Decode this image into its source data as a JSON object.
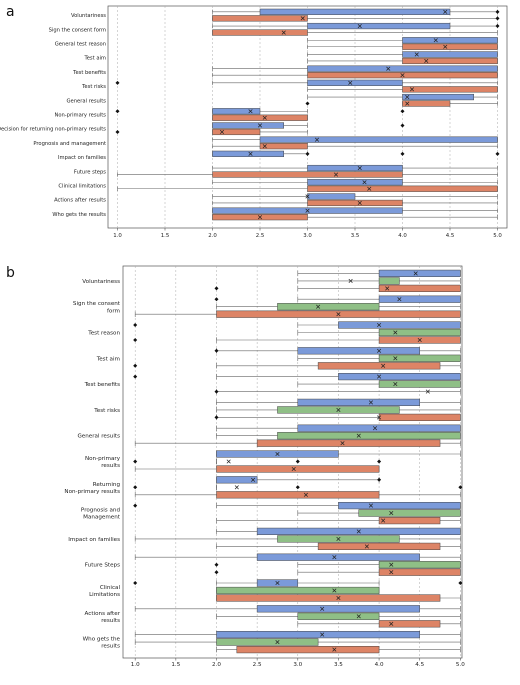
{
  "chart_data": [
    {
      "type": "box",
      "panel_label": "a",
      "xlim": [
        0.9,
        5.1
      ],
      "xticks": [
        "1.0",
        "1.5",
        "2.0",
        "2.5",
        "3.0",
        "3.5",
        "4.0",
        "4.5",
        "5.0"
      ],
      "grid": "vertical dashed",
      "series_colors": [
        "#7b9ad9",
        "#dd8466"
      ],
      "rows": [
        {
          "label": "Voluntariness",
          "boxes": [
            {
              "q1": 2.5,
              "q3": 4.5,
              "mean": 4.45,
              "wmin": 2.0,
              "wmax": 5.0,
              "out": [
                5.0
              ]
            },
            {
              "q1": 2.0,
              "q3": 3.0,
              "mean": 2.95,
              "wmin": 2.0,
              "wmax": 5.0,
              "out": [
                5.0
              ]
            }
          ]
        },
        {
          "label": "Sign the consent form",
          "boxes": [
            {
              "q1": 3.0,
              "q3": 4.5,
              "mean": 3.55,
              "wmin": 2.0,
              "wmax": 5.0,
              "out": [
                5.0
              ]
            },
            {
              "q1": 2.0,
              "q3": 3.0,
              "mean": 2.75,
              "wmin": 2.0,
              "wmax": 5.0,
              "out": []
            }
          ]
        },
        {
          "label": "General test reason",
          "boxes": [
            {
              "q1": 4.0,
              "q3": 5.0,
              "mean": 4.35,
              "wmin": 3.0,
              "wmax": 5.0,
              "out": []
            },
            {
              "q1": 4.0,
              "q3": 5.0,
              "mean": 4.45,
              "wmin": 3.0,
              "wmax": 5.0,
              "out": []
            }
          ]
        },
        {
          "label": "Test aim",
          "boxes": [
            {
              "q1": 4.0,
              "q3": 5.0,
              "mean": 4.15,
              "wmin": 3.0,
              "wmax": 5.0,
              "out": []
            },
            {
              "q1": 4.0,
              "q3": 5.0,
              "mean": 4.25,
              "wmin": 3.0,
              "wmax": 5.0,
              "out": []
            }
          ]
        },
        {
          "label": "Test benefits",
          "boxes": [
            {
              "q1": 3.0,
              "q3": 5.0,
              "mean": 3.85,
              "wmin": 2.0,
              "wmax": 5.0,
              "out": []
            },
            {
              "q1": 3.0,
              "q3": 5.0,
              "mean": 4.0,
              "wmin": 2.0,
              "wmax": 5.0,
              "out": []
            }
          ]
        },
        {
          "label": "Test risks",
          "boxes": [
            {
              "q1": 3.0,
              "q3": 4.0,
              "mean": 3.45,
              "wmin": 2.0,
              "wmax": 5.0,
              "out": [
                1.0
              ]
            },
            {
              "q1": 4.0,
              "q3": 5.0,
              "mean": 4.1,
              "wmin": 3.0,
              "wmax": 5.0,
              "out": []
            }
          ]
        },
        {
          "label": "General results",
          "boxes": [
            {
              "q1": 4.0,
              "q3": 4.75,
              "mean": 4.05,
              "wmin": 3.0,
              "wmax": 5.0,
              "out": []
            },
            {
              "q1": 4.0,
              "q3": 4.5,
              "mean": 4.05,
              "wmin": 4.0,
              "wmax": 5.0,
              "out": [
                3.0
              ]
            }
          ]
        },
        {
          "label": "Non-primary results",
          "boxes": [
            {
              "q1": 2.0,
              "q3": 2.5,
              "mean": 2.4,
              "wmin": 2.0,
              "wmax": 3.0,
              "out": [
                1.0,
                4.0
              ]
            },
            {
              "q1": 2.0,
              "q3": 3.0,
              "mean": 2.55,
              "wmin": 2.0,
              "wmax": 3.0,
              "out": []
            }
          ]
        },
        {
          "label": "Decision for returning non-primary results",
          "boxes": [
            {
              "q1": 2.0,
              "q3": 2.75,
              "mean": 2.5,
              "wmin": 2.0,
              "wmax": 3.0,
              "out": [
                4.0
              ]
            },
            {
              "q1": 2.0,
              "q3": 2.5,
              "mean": 2.1,
              "wmin": 2.0,
              "wmax": 3.0,
              "out": [
                1.0
              ]
            }
          ]
        },
        {
          "label": "Prognosis and management",
          "boxes": [
            {
              "q1": 2.5,
              "q3": 5.0,
              "mean": 3.1,
              "wmin": 2.0,
              "wmax": 5.0,
              "out": []
            },
            {
              "q1": 2.5,
              "q3": 3.0,
              "mean": 2.55,
              "wmin": 2.0,
              "wmax": 5.0,
              "out": []
            }
          ]
        },
        {
          "label": "Impact on families",
          "boxes": [
            {
              "q1": 2.0,
              "q3": 2.75,
              "mean": 2.4,
              "wmin": 2.0,
              "wmax": 3.0,
              "out": [
                3.0,
                4.0,
                5.0
              ]
            },
            {
              "q1": null,
              "q3": null,
              "mean": null,
              "wmin": null,
              "wmax": null,
              "out": []
            }
          ]
        },
        {
          "label": "Future steps",
          "boxes": [
            {
              "q1": 3.0,
              "q3": 4.0,
              "mean": 3.55,
              "wmin": 2.0,
              "wmax": 5.0,
              "out": []
            },
            {
              "q1": 2.0,
              "q3": 4.0,
              "mean": 3.3,
              "wmin": 1.0,
              "wmax": 5.0,
              "out": []
            }
          ]
        },
        {
          "label": "Clinical limitations",
          "boxes": [
            {
              "q1": 3.0,
              "q3": 4.0,
              "mean": 3.6,
              "wmin": 2.0,
              "wmax": 5.0,
              "out": []
            },
            {
              "q1": 3.0,
              "q3": 5.0,
              "mean": 3.65,
              "wmin": 1.0,
              "wmax": 5.0,
              "out": []
            }
          ]
        },
        {
          "label": "Actions after results",
          "boxes": [
            {
              "q1": 3.0,
              "q3": 3.5,
              "mean": 3.0,
              "wmin": 2.0,
              "wmax": 5.0,
              "out": []
            },
            {
              "q1": 3.0,
              "q3": 4.0,
              "mean": 3.55,
              "wmin": 2.0,
              "wmax": 5.0,
              "out": []
            }
          ]
        },
        {
          "label": "Who gets the results",
          "boxes": [
            {
              "q1": 2.0,
              "q3": 4.0,
              "mean": 3.0,
              "wmin": 2.0,
              "wmax": 5.0,
              "out": []
            },
            {
              "q1": 2.0,
              "q3": 3.0,
              "mean": 2.5,
              "wmin": 2.0,
              "wmax": 5.0,
              "out": []
            }
          ]
        }
      ]
    },
    {
      "type": "box",
      "panel_label": "b",
      "xlim": [
        0.85,
        5.02
      ],
      "xticks": [
        "1.0",
        "1.5",
        "2.0",
        "2.5",
        "3.0",
        "3.5",
        "4.0",
        "4.5",
        "5.0"
      ],
      "grid": "vertical dashed",
      "series_colors": [
        "#7b9ad9",
        "#8fbf86",
        "#dd8466"
      ],
      "rows": [
        {
          "label": "Voluntariness",
          "boxes": [
            {
              "q1": 4.0,
              "q3": 5.0,
              "mean": 4.45,
              "wmin": 3.0,
              "wmax": 5.0,
              "out": []
            },
            {
              "q1": 4.0,
              "q3": 4.25,
              "mean": 3.65,
              "wmin": 3.0,
              "wmax": 5.0,
              "out": []
            },
            {
              "q1": 4.0,
              "q3": 5.0,
              "mean": 4.1,
              "wmin": 3.0,
              "wmax": 5.0,
              "out": [
                2.0
              ]
            }
          ]
        },
        {
          "label": "Sign the consent form",
          "boxes": [
            {
              "q1": 4.0,
              "q3": 5.0,
              "mean": 4.25,
              "wmin": 3.0,
              "wmax": 5.0,
              "out": [
                2.0
              ]
            },
            {
              "q1": 2.75,
              "q3": 4.0,
              "mean": 3.25,
              "wmin": 2.0,
              "wmax": 5.0,
              "out": []
            },
            {
              "q1": 2.0,
              "q3": 5.0,
              "mean": 3.5,
              "wmin": 1.0,
              "wmax": 5.0,
              "out": []
            }
          ]
        },
        {
          "label": "Test reason",
          "boxes": [
            {
              "q1": 3.5,
              "q3": 5.0,
              "mean": 4.0,
              "wmin": 3.0,
              "wmax": 5.0,
              "out": [
                1.0
              ]
            },
            {
              "q1": 4.0,
              "q3": 5.0,
              "mean": 4.2,
              "wmin": 3.0,
              "wmax": 5.0,
              "out": []
            },
            {
              "q1": 4.0,
              "q3": 5.0,
              "mean": 4.5,
              "wmin": 2.0,
              "wmax": 5.0,
              "out": [
                1.0
              ]
            }
          ]
        },
        {
          "label": "Test aim",
          "boxes": [
            {
              "q1": 3.0,
              "q3": 4.5,
              "mean": 4.0,
              "wmin": 2.0,
              "wmax": 5.0,
              "out": [
                2.0
              ]
            },
            {
              "q1": 4.0,
              "q3": 5.0,
              "mean": 4.2,
              "wmin": 3.0,
              "wmax": 5.0,
              "out": []
            },
            {
              "q1": 3.25,
              "q3": 4.75,
              "mean": 4.05,
              "wmin": 2.0,
              "wmax": 5.0,
              "out": [
                1.0
              ]
            }
          ]
        },
        {
          "label": "Test benefits",
          "boxes": [
            {
              "q1": 3.5,
              "q3": 5.0,
              "mean": 4.0,
              "wmin": 2.0,
              "wmax": 5.0,
              "out": [
                1.0
              ]
            },
            {
              "q1": 4.0,
              "q3": 5.0,
              "mean": 4.2,
              "wmin": 3.0,
              "wmax": 5.0,
              "out": []
            },
            {
              "q1": null,
              "q3": null,
              "mean": 4.6,
              "wmin": 2.0,
              "wmax": 5.0,
              "out": [
                2.0
              ]
            }
          ]
        },
        {
          "label": "Test risks",
          "boxes": [
            {
              "q1": 3.0,
              "q3": 4.5,
              "mean": 3.9,
              "wmin": 2.0,
              "wmax": 5.0,
              "out": []
            },
            {
              "q1": 2.75,
              "q3": 4.25,
              "mean": 3.5,
              "wmin": 2.0,
              "wmax": 5.0,
              "out": []
            },
            {
              "q1": 4.0,
              "q3": 5.0,
              "mean": 4.0,
              "wmin": 2.0,
              "wmax": 5.0,
              "out": [
                2.0
              ]
            }
          ]
        },
        {
          "label": "General results",
          "boxes": [
            {
              "q1": 3.0,
              "q3": 5.0,
              "mean": 3.95,
              "wmin": 2.0,
              "wmax": 5.0,
              "out": []
            },
            {
              "q1": 2.75,
              "q3": 5.0,
              "mean": 3.75,
              "wmin": 2.0,
              "wmax": 5.0,
              "out": []
            },
            {
              "q1": 2.5,
              "q3": 4.75,
              "mean": 3.55,
              "wmin": 1.0,
              "wmax": 5.0,
              "out": []
            }
          ]
        },
        {
          "label": "Non-primary results",
          "boxes": [
            {
              "q1": 2.0,
              "q3": 3.5,
              "mean": 2.75,
              "wmin": 2.0,
              "wmax": 5.0,
              "out": []
            },
            {
              "q1": null,
              "q3": null,
              "mean": 2.15,
              "wmin": 2.0,
              "wmax": 2.0,
              "out": [
                1.0,
                3.0,
                4.0
              ]
            },
            {
              "q1": 2.0,
              "q3": 4.0,
              "mean": 2.95,
              "wmin": 1.0,
              "wmax": 4.0,
              "out": []
            }
          ]
        },
        {
          "label": "Returning Non-primary results",
          "boxes": [
            {
              "q1": 2.0,
              "q3": 2.5,
              "mean": 2.45,
              "wmin": 2.0,
              "wmax": 4.0,
              "out": [
                4.0
              ]
            },
            {
              "q1": null,
              "q3": null,
              "mean": 2.25,
              "wmin": 2.0,
              "wmax": 2.0,
              "out": [
                1.0,
                3.0,
                5.0
              ]
            },
            {
              "q1": 2.0,
              "q3": 4.0,
              "mean": 3.1,
              "wmin": 1.0,
              "wmax": 5.0,
              "out": []
            }
          ]
        },
        {
          "label": "Prognosis and Management",
          "boxes": [
            {
              "q1": 3.5,
              "q3": 5.0,
              "mean": 3.9,
              "wmin": 2.0,
              "wmax": 5.0,
              "out": [
                1.0
              ]
            },
            {
              "q1": 3.75,
              "q3": 5.0,
              "mean": 4.15,
              "wmin": 3.0,
              "wmax": 5.0,
              "out": []
            },
            {
              "q1": 4.0,
              "q3": 4.75,
              "mean": 4.05,
              "wmin": 2.0,
              "wmax": 5.0,
              "out": []
            }
          ]
        },
        {
          "label": "Impact on families",
          "boxes": [
            {
              "q1": 2.5,
              "q3": 5.0,
              "mean": 3.75,
              "wmin": 2.0,
              "wmax": 5.0,
              "out": []
            },
            {
              "q1": 2.75,
              "q3": 4.25,
              "mean": 3.5,
              "wmin": 1.0,
              "wmax": 5.0,
              "out": []
            },
            {
              "q1": 3.25,
              "q3": 4.75,
              "mean": 3.85,
              "wmin": 2.0,
              "wmax": 5.0,
              "out": []
            }
          ]
        },
        {
          "label": "Future Steps",
          "boxes": [
            {
              "q1": 2.5,
              "q3": 4.5,
              "mean": 3.45,
              "wmin": 1.0,
              "wmax": 5.0,
              "out": []
            },
            {
              "q1": 4.0,
              "q3": 5.0,
              "mean": 4.15,
              "wmin": 3.0,
              "wmax": 5.0,
              "out": [
                2.0
              ]
            },
            {
              "q1": 4.0,
              "q3": 5.0,
              "mean": 4.15,
              "wmin": 3.0,
              "wmax": 5.0,
              "out": [
                2.0
              ]
            }
          ]
        },
        {
          "label": "Clinical Limitations",
          "boxes": [
            {
              "q1": 2.5,
              "q3": 3.0,
              "mean": 2.75,
              "wmin": 2.0,
              "wmax": 4.0,
              "out": [
                1.0,
                5.0
              ]
            },
            {
              "q1": 2.0,
              "q3": 4.0,
              "mean": 3.45,
              "wmin": 2.0,
              "wmax": 4.0,
              "out": []
            },
            {
              "q1": 2.0,
              "q3": 4.75,
              "mean": 3.5,
              "wmin": 2.0,
              "wmax": 5.0,
              "out": []
            }
          ]
        },
        {
          "label": "Actions after results",
          "boxes": [
            {
              "q1": 2.5,
              "q3": 4.5,
              "mean": 3.3,
              "wmin": 1.0,
              "wmax": 5.0,
              "out": []
            },
            {
              "q1": 3.0,
              "q3": 4.0,
              "mean": 3.75,
              "wmin": 2.0,
              "wmax": 5.0,
              "out": []
            },
            {
              "q1": 4.0,
              "q3": 4.75,
              "mean": 4.15,
              "wmin": 3.0,
              "wmax": 5.0,
              "out": []
            }
          ]
        },
        {
          "label": "Who gets the results",
          "boxes": [
            {
              "q1": 2.0,
              "q3": 4.5,
              "mean": 3.3,
              "wmin": 1.0,
              "wmax": 5.0,
              "out": []
            },
            {
              "q1": 2.0,
              "q3": 3.25,
              "mean": 2.75,
              "wmin": 1.0,
              "wmax": 5.0,
              "out": []
            },
            {
              "q1": 2.25,
              "q3": 4.0,
              "mean": 3.45,
              "wmin": 2.0,
              "wmax": 5.0,
              "out": []
            }
          ]
        }
      ]
    }
  ]
}
